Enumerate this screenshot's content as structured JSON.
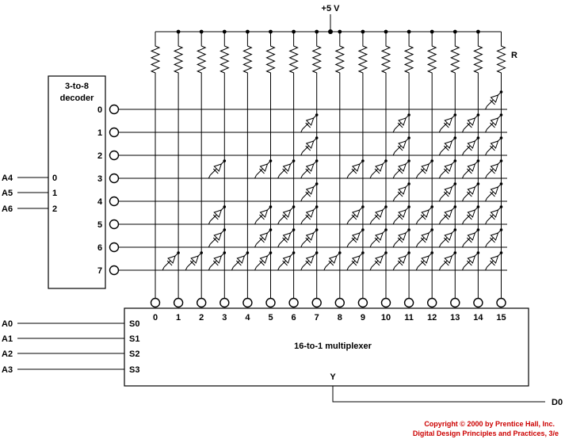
{
  "supply_label": "+5 V",
  "resistor_label": "R",
  "decoder": {
    "title_line1": "3-to-8",
    "title_line2": "decoder",
    "inputs": [
      {
        "signal": "A4",
        "pin": "0"
      },
      {
        "signal": "A5",
        "pin": "1"
      },
      {
        "signal": "A6",
        "pin": "2"
      }
    ],
    "outputs": [
      "0",
      "1",
      "2",
      "3",
      "4",
      "5",
      "6",
      "7"
    ]
  },
  "multiplexer": {
    "title": "16-to-1 multiplexer",
    "inputs": [
      "0",
      "1",
      "2",
      "3",
      "4",
      "5",
      "6",
      "7",
      "8",
      "9",
      "10",
      "11",
      "12",
      "13",
      "14",
      "15"
    ],
    "selects": [
      {
        "signal": "A0",
        "pin": "S0"
      },
      {
        "signal": "A1",
        "pin": "S1"
      },
      {
        "signal": "A2",
        "pin": "S2"
      },
      {
        "signal": "A3",
        "pin": "S3"
      }
    ],
    "output_pin": "Y",
    "output_signal": "D0"
  },
  "diodes": {
    "0": [
      15
    ],
    "1": [
      7,
      11,
      13,
      14,
      15
    ],
    "2": [
      7,
      11,
      13,
      14,
      15
    ],
    "3": [
      3,
      5,
      6,
      7,
      9,
      10,
      11,
      12,
      13,
      14,
      15
    ],
    "4": [
      7,
      11,
      13,
      14,
      15
    ],
    "5": [
      3,
      5,
      6,
      7,
      9,
      10,
      11,
      12,
      13,
      14,
      15
    ],
    "6": [
      3,
      5,
      6,
      7,
      9,
      10,
      11,
      12,
      13,
      14,
      15
    ],
    "7": [
      1,
      2,
      3,
      4,
      5,
      6,
      7,
      8,
      9,
      10,
      11,
      12,
      13,
      14,
      15
    ]
  },
  "copyright": {
    "line1": "Copyright © 2000 by Prentice Hall, Inc.",
    "line2": "Digital Design Principles and Practices, 3/e"
  }
}
